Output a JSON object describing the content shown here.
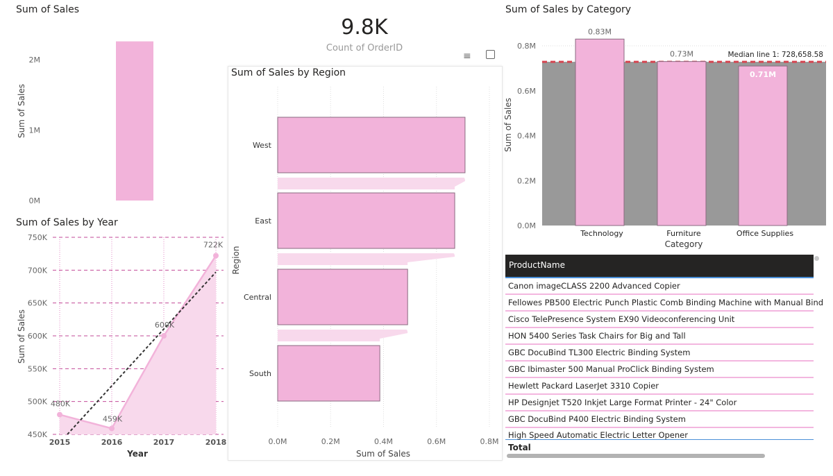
{
  "card": {
    "value": "9.8K",
    "label": "Count of OrderID"
  },
  "header_icons": {
    "filter": "filter-icon",
    "focus": "focus-mode-icon"
  },
  "colors": {
    "bar": "#f2b3da",
    "bar_stroke": "#8a6a80",
    "area": "#f8d9ec",
    "median": "#d64550",
    "median_bg": "#999999",
    "grid": "#c24a97"
  },
  "chart_data": [
    {
      "type": "bar",
      "title": "Sum of Sales",
      "ylabel": "Sum of Sales",
      "xlabel": "",
      "categories": [
        ""
      ],
      "values": [
        2260000
      ],
      "ylim": [
        0,
        2300000
      ],
      "yticks": [
        "0M",
        "1M",
        "2M"
      ],
      "ytick_values": [
        0,
        1000000,
        2000000
      ]
    },
    {
      "type": "area",
      "title": "Sum of Sales by Year",
      "xlabel": "Year",
      "ylabel": "Sum of Sales",
      "categories": [
        "2015",
        "2016",
        "2017",
        "2018"
      ],
      "values": [
        480000,
        459000,
        600000,
        722000
      ],
      "data_labels": [
        "480K",
        "459K",
        "600K",
        "722K"
      ],
      "trend_line": true,
      "ylim": [
        450000,
        750000
      ],
      "yticks": [
        "450K",
        "500K",
        "550K",
        "600K",
        "650K",
        "700K",
        "750K"
      ],
      "grid": true
    },
    {
      "type": "bar",
      "orientation": "horizontal",
      "title": "Sum of Sales by Region",
      "xlabel": "Sum of Sales",
      "ylabel": "Region",
      "categories": [
        "West",
        "East",
        "Central",
        "South"
      ],
      "values": [
        708000,
        669000,
        491000,
        386000
      ],
      "xlim": [
        0,
        800000
      ],
      "xticks": [
        "0.0M",
        "0.2M",
        "0.4M",
        "0.6M",
        "0.8M"
      ],
      "grid": true
    },
    {
      "type": "bar",
      "title": "Sum of Sales by Category",
      "xlabel": "Category",
      "ylabel": "Sum of Sales",
      "categories": [
        "Technology",
        "Furniture",
        "Office Supplies"
      ],
      "values": [
        830000,
        730000,
        710000
      ],
      "data_labels": [
        "0.83M",
        "0.73M",
        "0.71M"
      ],
      "median_value": 728658.58,
      "median_label": "Median line 1: 728,658.58",
      "ylim": [
        0,
        0.8
      ],
      "yticks": [
        "0.0M",
        "0.2M",
        "0.4M",
        "0.6M",
        "0.8M"
      ]
    }
  ],
  "table": {
    "header": "ProductName",
    "rows": [
      "Canon imageCLASS 2200 Advanced Copier",
      "Fellowes PB500 Electric Punch Plastic Comb Binding Machine with Manual Bind",
      "Cisco TelePresence System EX90 Videoconferencing Unit",
      "HON 5400 Series Task Chairs for Big and Tall",
      "GBC DocuBind TL300 Electric Binding System",
      "GBC Ibimaster 500 Manual ProClick Binding System",
      "Hewlett Packard LaserJet 3310 Copier",
      "HP Designjet T520 Inkjet Large Format Printer - 24\" Color",
      "GBC DocuBind P400 Electric Binding System",
      "High Speed Automatic Electric Letter Opener"
    ],
    "total_label": "Total"
  }
}
